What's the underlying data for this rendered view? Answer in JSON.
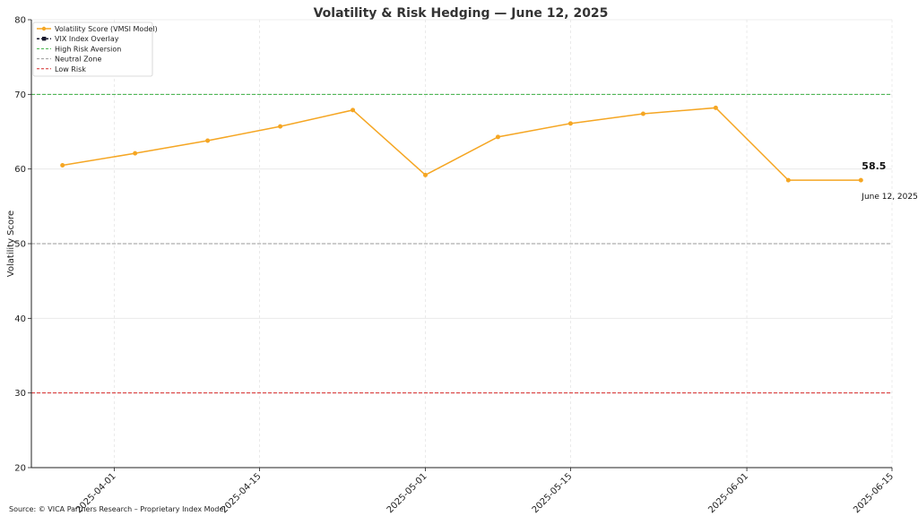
{
  "chart_data": {
    "type": "line",
    "title": "Volatility & Risk Hedging — June 12, 2025",
    "ylabel": "Volatility Score",
    "xlabel": "",
    "ylim": [
      20,
      80
    ],
    "yticks": [
      "20",
      "30",
      "40",
      "50",
      "60",
      "70",
      "80"
    ],
    "xlim": [
      "2025-03-24",
      "2025-06-15"
    ],
    "xticks": [
      "2025-04-01",
      "2025-04-15",
      "2025-05-01",
      "2025-05-15",
      "2025-06-01",
      "2025-06-15"
    ],
    "grid": true,
    "legend_position": "top-left",
    "series": [
      {
        "name": "Volatility Score (VMSI Model)",
        "color": "#f5a623",
        "marker": "circle",
        "points": [
          {
            "x": "2025-03-27",
            "y": 60.5
          },
          {
            "x": "2025-04-03",
            "y": 62.1
          },
          {
            "x": "2025-04-10",
            "y": 63.8
          },
          {
            "x": "2025-04-17",
            "y": 65.7
          },
          {
            "x": "2025-04-24",
            "y": 67.9
          },
          {
            "x": "2025-05-01",
            "y": 59.2
          },
          {
            "x": "2025-05-08",
            "y": 64.3
          },
          {
            "x": "2025-05-15",
            "y": 66.1
          },
          {
            "x": "2025-05-22",
            "y": 67.4
          },
          {
            "x": "2025-05-29",
            "y": 68.2
          },
          {
            "x": "2025-06-05",
            "y": 58.5
          },
          {
            "x": "2025-06-12",
            "y": 58.5
          }
        ]
      },
      {
        "name": "VIX Index Overlay",
        "color": "#1a1a2e",
        "marker": "square",
        "points": []
      }
    ],
    "reference_lines": [
      {
        "name": "High Risk Aversion",
        "y": 70,
        "color": "#3cb043"
      },
      {
        "name": "Neutral Zone",
        "y": 50,
        "color": "#999999"
      },
      {
        "name": "Low Risk",
        "y": 30,
        "color": "#d62828"
      }
    ],
    "annotation": {
      "value": "58.5",
      "date": "June 12, 2025",
      "x": "2025-06-12",
      "y": 58.5
    }
  },
  "source": "Source: © VICA Partners Research – Proprietary Index Model"
}
